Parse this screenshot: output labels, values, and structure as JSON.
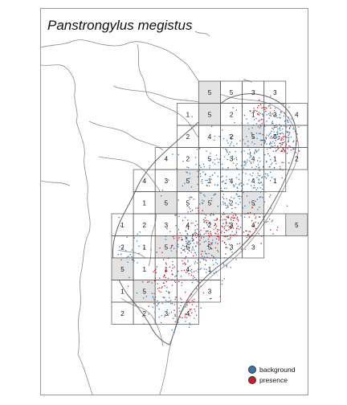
{
  "map": {
    "title": "Panstrongylus megistus",
    "colors": {
      "background_points": "#3a75a8",
      "presence_points": "#c8202a",
      "shaded_cell": "#e3e3e3",
      "grid_line": "#555555",
      "coastline": "#8a8a8a"
    },
    "grid_cells": [
      {
        "row": 0,
        "col": 4,
        "label": "5",
        "shaded": true
      },
      {
        "row": 0,
        "col": 5,
        "label": "5",
        "shaded": false
      },
      {
        "row": 0,
        "col": 6,
        "label": "3",
        "shaded": false
      },
      {
        "row": 0,
        "col": 7,
        "label": "3",
        "shaded": false
      },
      {
        "row": 1,
        "col": 3,
        "label": "1",
        "shaded": false
      },
      {
        "row": 1,
        "col": 4,
        "label": "5",
        "shaded": true
      },
      {
        "row": 1,
        "col": 5,
        "label": "2",
        "shaded": false
      },
      {
        "row": 1,
        "col": 6,
        "label": "1",
        "shaded": false
      },
      {
        "row": 1,
        "col": 7,
        "label": "3",
        "shaded": false
      },
      {
        "row": 1,
        "col": 8,
        "label": "4",
        "shaded": false
      },
      {
        "row": 2,
        "col": 3,
        "label": "2",
        "shaded": false
      },
      {
        "row": 2,
        "col": 4,
        "label": "4",
        "shaded": false
      },
      {
        "row": 2,
        "col": 5,
        "label": "2",
        "shaded": false
      },
      {
        "row": 2,
        "col": 6,
        "label": "5",
        "shaded": true
      },
      {
        "row": 2,
        "col": 7,
        "label": "5",
        "shaded": false
      },
      {
        "row": 2,
        "col": 8,
        "label": "",
        "shaded": false
      },
      {
        "row": 3,
        "col": 2,
        "label": "4",
        "shaded": false
      },
      {
        "row": 3,
        "col": 3,
        "label": "2",
        "shaded": false
      },
      {
        "row": 3,
        "col": 4,
        "label": "5",
        "shaded": false
      },
      {
        "row": 3,
        "col": 5,
        "label": "3",
        "shaded": false
      },
      {
        "row": 3,
        "col": 6,
        "label": "4",
        "shaded": false
      },
      {
        "row": 3,
        "col": 7,
        "label": "1",
        "shaded": false
      },
      {
        "row": 3,
        "col": 8,
        "label": "2",
        "shaded": false
      },
      {
        "row": 4,
        "col": 1,
        "label": "4",
        "shaded": false
      },
      {
        "row": 4,
        "col": 2,
        "label": "3",
        "shaded": false
      },
      {
        "row": 4,
        "col": 3,
        "label": "5",
        "shaded": true
      },
      {
        "row": 4,
        "col": 4,
        "label": "1",
        "shaded": false
      },
      {
        "row": 4,
        "col": 5,
        "label": "4",
        "shaded": false
      },
      {
        "row": 4,
        "col": 6,
        "label": "4",
        "shaded": false
      },
      {
        "row": 4,
        "col": 7,
        "label": "1",
        "shaded": false
      },
      {
        "row": 5,
        "col": 1,
        "label": "1",
        "shaded": false
      },
      {
        "row": 5,
        "col": 2,
        "label": "5",
        "shaded": true
      },
      {
        "row": 5,
        "col": 3,
        "label": "5",
        "shaded": false
      },
      {
        "row": 5,
        "col": 4,
        "label": "5",
        "shaded": true
      },
      {
        "row": 5,
        "col": 5,
        "label": "2",
        "shaded": false
      },
      {
        "row": 5,
        "col": 6,
        "label": "5",
        "shaded": true
      },
      {
        "row": 6,
        "col": 0,
        "label": "1",
        "shaded": false
      },
      {
        "row": 6,
        "col": 1,
        "label": "2",
        "shaded": false
      },
      {
        "row": 6,
        "col": 2,
        "label": "3",
        "shaded": false
      },
      {
        "row": 6,
        "col": 3,
        "label": "4",
        "shaded": false
      },
      {
        "row": 6,
        "col": 4,
        "label": "2",
        "shaded": false
      },
      {
        "row": 6,
        "col": 5,
        "label": "3",
        "shaded": false
      },
      {
        "row": 6,
        "col": 6,
        "label": "4",
        "shaded": false
      },
      {
        "row": 6,
        "col": 7,
        "label": "",
        "shaded": false
      },
      {
        "row": 6,
        "col": 8,
        "label": "5",
        "shaded": true
      },
      {
        "row": 7,
        "col": 0,
        "label": "2",
        "shaded": false
      },
      {
        "row": 7,
        "col": 1,
        "label": "1",
        "shaded": false
      },
      {
        "row": 7,
        "col": 2,
        "label": "5",
        "shaded": true
      },
      {
        "row": 7,
        "col": 3,
        "label": "5",
        "shaded": false
      },
      {
        "row": 7,
        "col": 4,
        "label": "5",
        "shaded": true
      },
      {
        "row": 7,
        "col": 5,
        "label": "3",
        "shaded": false
      },
      {
        "row": 7,
        "col": 6,
        "label": "3",
        "shaded": false
      },
      {
        "row": 8,
        "col": 0,
        "label": "5",
        "shaded": true
      },
      {
        "row": 8,
        "col": 1,
        "label": "1",
        "shaded": false
      },
      {
        "row": 8,
        "col": 2,
        "label": "1",
        "shaded": false
      },
      {
        "row": 8,
        "col": 3,
        "label": "4",
        "shaded": false
      },
      {
        "row": 8,
        "col": 4,
        "label": "1",
        "shaded": false
      },
      {
        "row": 9,
        "col": 0,
        "label": "1",
        "shaded": false
      },
      {
        "row": 9,
        "col": 1,
        "label": "5",
        "shaded": true
      },
      {
        "row": 9,
        "col": 2,
        "label": "",
        "shaded": false
      },
      {
        "row": 9,
        "col": 3,
        "label": "",
        "shaded": false
      },
      {
        "row": 9,
        "col": 4,
        "label": "3",
        "shaded": false
      },
      {
        "row": 10,
        "col": 0,
        "label": "2",
        "shaded": false
      },
      {
        "row": 10,
        "col": 1,
        "label": "2",
        "shaded": false
      },
      {
        "row": 10,
        "col": 2,
        "label": "3",
        "shaded": false
      },
      {
        "row": 10,
        "col": 3,
        "label": "4",
        "shaded": false
      }
    ],
    "legend": [
      {
        "label": "background",
        "color": "#3a75a8"
      },
      {
        "label": "presence",
        "color": "#c8202a"
      }
    ]
  }
}
